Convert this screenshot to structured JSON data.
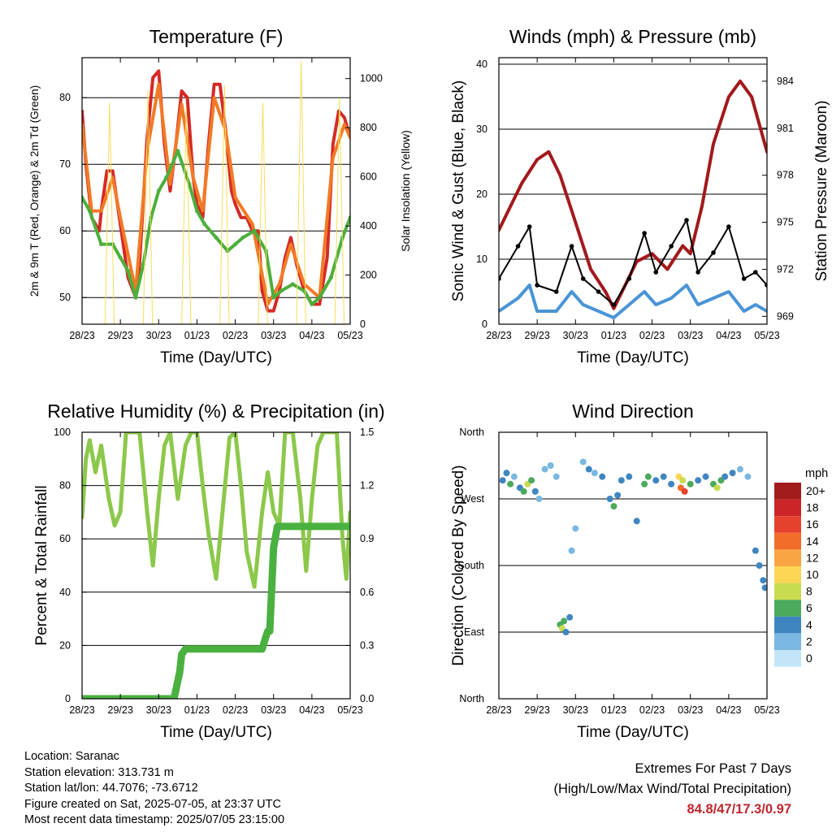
{
  "chart_data": [
    {
      "id": "temperature",
      "type": "line",
      "title": "Temperature (F)",
      "xlabel": "Time (Day/UTC)",
      "ylabel": "2m & 9m T (Red, Orange) & 2m Td (Green)",
      "y2label": "Solar Insolation (Yellow)",
      "ylim": [
        46,
        86
      ],
      "y2lim": [
        0,
        1085
      ],
      "x_ticks": [
        "28/23",
        "29/23",
        "30/23",
        "01/23",
        "02/23",
        "03/23",
        "04/23",
        "05/23"
      ],
      "y_ticks": [
        50,
        60,
        70,
        80
      ],
      "y2_ticks": [
        0,
        200,
        400,
        600,
        800,
        1000
      ],
      "grid": true,
      "series": [
        {
          "name": "2m T",
          "color": "#d42a25",
          "x": [
            0,
            0.1,
            0.25,
            0.45,
            0.5,
            0.65,
            0.8,
            1.0,
            1.2,
            1.4,
            1.5,
            1.7,
            1.85,
            2.0,
            2.15,
            2.3,
            2.45,
            2.6,
            2.75,
            2.9,
            3.0,
            3.15,
            3.3,
            3.45,
            3.6,
            3.75,
            3.9,
            4.0,
            4.15,
            4.3,
            4.45,
            4.6,
            4.7,
            4.85,
            5.0,
            5.15,
            5.3,
            5.45,
            5.6,
            5.8,
            6.0,
            6.2,
            6.4,
            6.55,
            6.7,
            6.85,
            7.0
          ],
          "y": [
            78,
            70,
            62,
            60,
            63,
            69,
            69,
            61,
            53,
            50,
            55,
            74,
            83,
            84,
            73,
            66,
            73,
            81,
            80,
            68,
            64,
            62,
            73,
            82,
            82,
            75,
            66,
            64,
            62,
            62,
            60,
            60,
            51,
            48,
            48,
            51,
            56,
            59,
            55,
            51,
            49,
            49,
            56,
            73,
            78,
            77,
            74
          ]
        },
        {
          "name": "9m T",
          "color": "#f27a26",
          "x": [
            0,
            0.25,
            0.5,
            0.8,
            1.0,
            1.4,
            1.7,
            2.0,
            2.3,
            2.6,
            2.9,
            3.15,
            3.45,
            3.75,
            4.0,
            4.45,
            4.85,
            5.15,
            5.45,
            5.8,
            6.2,
            6.55,
            6.85,
            7.0
          ],
          "y": [
            76,
            63,
            63,
            68,
            62,
            51,
            72,
            82,
            67,
            79,
            68,
            63,
            80,
            75,
            65,
            61,
            49,
            52,
            58,
            52,
            50,
            71,
            76,
            74
          ]
        },
        {
          "name": "2m Td",
          "color": "#4caf3b",
          "x": [
            0,
            0.2,
            0.5,
            0.8,
            1.0,
            1.2,
            1.4,
            1.6,
            1.8,
            2.0,
            2.2,
            2.5,
            2.8,
            3.0,
            3.2,
            3.5,
            3.8,
            4.0,
            4.2,
            4.5,
            4.8,
            5.0,
            5.2,
            5.5,
            5.8,
            6.0,
            6.2,
            6.5,
            6.8,
            7.0
          ],
          "y": [
            65,
            63,
            58,
            58,
            56,
            54,
            50,
            55,
            62,
            66,
            68,
            72,
            67,
            63,
            61,
            59,
            57,
            58,
            59,
            60,
            57,
            50,
            51,
            52,
            51,
            49,
            50,
            53,
            59,
            62
          ]
        },
        {
          "name": "Solar",
          "color": "#f7dc5a",
          "x": [
            0,
            0.6,
            0.72,
            0.84,
            1.0,
            1.6,
            1.72,
            1.84,
            2.0,
            2.6,
            2.72,
            2.84,
            3.0,
            3.6,
            3.72,
            3.84,
            4.0,
            4.6,
            4.72,
            4.84,
            5.0,
            5.6,
            5.72,
            5.84,
            6.0,
            6.6,
            6.72,
            6.84,
            7.0
          ],
          "y": [
            0,
            0,
            900,
            0,
            0,
            0,
            950,
            0,
            0,
            0,
            880,
            0,
            0,
            0,
            970,
            0,
            0,
            0,
            900,
            0,
            0,
            0,
            1070,
            0,
            0,
            0,
            920,
            0,
            0
          ]
        }
      ]
    },
    {
      "id": "winds",
      "type": "line",
      "title": "Winds (mph) & Pressure (mb)",
      "xlabel": "Time (Day/UTC)",
      "ylabel": "Sonic Wind & Gust (Blue, Black)",
      "y2label": "Station Pressure (Maroon)",
      "ylim": [
        0,
        41
      ],
      "y2lim": [
        968.5,
        985.5
      ],
      "x_ticks": [
        "28/23",
        "29/23",
        "30/23",
        "01/23",
        "02/23",
        "03/23",
        "04/23",
        "05/23"
      ],
      "y_ticks": [
        0,
        10,
        20,
        30,
        40
      ],
      "y2_ticks": [
        969,
        972,
        975,
        978,
        981,
        984
      ],
      "grid": true,
      "series": [
        {
          "name": "Pressure",
          "color": "#a3191c",
          "x": [
            0,
            0.3,
            0.6,
            1.0,
            1.3,
            1.6,
            2.0,
            2.4,
            2.8,
            3.0,
            3.3,
            3.6,
            4.0,
            4.4,
            4.8,
            5.0,
            5.3,
            5.6,
            6.0,
            6.3,
            6.6,
            7.0
          ],
          "y": [
            974.5,
            976,
            977.5,
            979,
            979.5,
            978,
            975,
            972,
            970.5,
            969.5,
            971,
            972.5,
            973,
            972,
            973.5,
            973,
            976,
            980,
            983,
            984,
            983,
            979.5
          ]
        },
        {
          "name": "Gust",
          "color": "#000000",
          "x": [
            0,
            0.5,
            0.8,
            1.0,
            1.5,
            1.9,
            2.2,
            2.6,
            3.0,
            3.4,
            3.8,
            4.1,
            4.5,
            4.9,
            5.2,
            5.6,
            6.0,
            6.4,
            6.7,
            7.0
          ],
          "y": [
            7,
            12,
            15,
            6,
            5,
            12,
            7,
            5,
            3,
            7,
            14,
            8,
            12,
            16,
            8,
            11,
            15,
            7,
            8,
            6
          ]
        },
        {
          "name": "Wind",
          "color": "#4a94d6",
          "x": [
            0,
            0.5,
            0.8,
            1.0,
            1.5,
            1.9,
            2.2,
            2.6,
            3.0,
            3.4,
            3.8,
            4.1,
            4.5,
            4.9,
            5.2,
            5.6,
            6.0,
            6.4,
            6.7,
            7.0
          ],
          "y": [
            2,
            4,
            6,
            2,
            2,
            5,
            3,
            2,
            1,
            3,
            5,
            3,
            4,
            6,
            3,
            4,
            5,
            2,
            3,
            2
          ]
        }
      ]
    },
    {
      "id": "humidity",
      "type": "line",
      "title": "Relative Humidity (%) & Precipitation (in)",
      "xlabel": "Time (Day/UTC)",
      "ylabel": "Percent & Total Rainfall",
      "ylim": [
        0,
        100
      ],
      "y2lim": [
        0,
        1.5
      ],
      "x_ticks": [
        "28/23",
        "29/23",
        "30/23",
        "01/23",
        "02/23",
        "03/23",
        "04/23",
        "05/23"
      ],
      "y_ticks": [
        0,
        20,
        40,
        60,
        80,
        100
      ],
      "y2_ticks": [
        "0.0",
        "0.3",
        "0.6",
        "0.9",
        "1.2",
        "1.5"
      ],
      "grid": true,
      "series": [
        {
          "name": "RH",
          "color": "#8cc84b",
          "x": [
            0,
            0.1,
            0.2,
            0.35,
            0.5,
            0.7,
            0.85,
            1.0,
            1.15,
            1.3,
            1.5,
            1.7,
            1.85,
            2.0,
            2.15,
            2.3,
            2.5,
            2.7,
            2.85,
            3.0,
            3.15,
            3.3,
            3.5,
            3.7,
            3.85,
            4.0,
            4.15,
            4.3,
            4.5,
            4.7,
            4.85,
            5.0,
            5.15,
            5.3,
            5.5,
            5.7,
            5.85,
            6.0,
            6.15,
            6.3,
            6.5,
            6.65,
            6.8,
            6.9,
            7.0
          ],
          "y": [
            68,
            90,
            97,
            85,
            95,
            75,
            65,
            70,
            100,
            100,
            100,
            70,
            50,
            75,
            95,
            100,
            75,
            95,
            100,
            100,
            80,
            62,
            45,
            75,
            98,
            100,
            80,
            55,
            42,
            70,
            85,
            70,
            65,
            100,
            100,
            75,
            48,
            75,
            95,
            100,
            100,
            100,
            60,
            45,
            70
          ]
        },
        {
          "name": "Rain",
          "color": "#4ab140",
          "x": [
            0,
            1.0,
            2.0,
            2.4,
            2.45,
            2.55,
            2.6,
            2.7,
            3.0,
            4.0,
            4.7,
            4.8,
            4.85,
            4.9,
            5.0,
            5.1,
            6.0,
            7.0
          ],
          "y": [
            0,
            0,
            0,
            0,
            0.05,
            0.15,
            0.25,
            0.28,
            0.28,
            0.28,
            0.28,
            0.35,
            0.38,
            0.38,
            0.85,
            0.97,
            0.97,
            0.97
          ]
        }
      ]
    },
    {
      "id": "direction",
      "type": "scatter",
      "title": "Wind Direction",
      "xlabel": "Time (Day/UTC)",
      "ylabel": "Direction (Colored By Speed)",
      "ylim": [
        0,
        360
      ],
      "x_ticks": [
        "28/23",
        "29/23",
        "30/23",
        "01/23",
        "02/23",
        "03/23",
        "04/23",
        "05/23"
      ],
      "y_ticks": [
        "North",
        "East",
        "South",
        "West",
        "North"
      ],
      "grid": true,
      "legend": {
        "unit": "mph",
        "labels": [
          "20+",
          "18",
          "16",
          "14",
          "12",
          "10",
          "8",
          "6",
          "4",
          "2",
          "0"
        ],
        "colors": [
          "#a31b1d",
          "#cc2527",
          "#e5422d",
          "#f26c2a",
          "#f9a544",
          "#fbd553",
          "#c9db4e",
          "#4caa5d",
          "#3f86c1",
          "#7ab8e2",
          "#c3e5f7"
        ]
      },
      "points": [
        {
          "x": 0.1,
          "y": 295,
          "s": 3
        },
        {
          "x": 0.2,
          "y": 305,
          "s": 4
        },
        {
          "x": 0.3,
          "y": 290,
          "s": 5
        },
        {
          "x": 0.4,
          "y": 300,
          "s": 2
        },
        {
          "x": 0.55,
          "y": 285,
          "s": 4
        },
        {
          "x": 0.65,
          "y": 280,
          "s": 6
        },
        {
          "x": 0.75,
          "y": 290,
          "s": 7
        },
        {
          "x": 0.85,
          "y": 295,
          "s": 5
        },
        {
          "x": 0.95,
          "y": 280,
          "s": 3
        },
        {
          "x": 1.05,
          "y": 270,
          "s": 2
        },
        {
          "x": 1.2,
          "y": 310,
          "s": 2
        },
        {
          "x": 1.35,
          "y": 315,
          "s": 1
        },
        {
          "x": 1.5,
          "y": 300,
          "s": 2
        },
        {
          "x": 1.6,
          "y": 100,
          "s": 6
        },
        {
          "x": 1.65,
          "y": 95,
          "s": 7
        },
        {
          "x": 1.7,
          "y": 105,
          "s": 5
        },
        {
          "x": 1.75,
          "y": 90,
          "s": 4
        },
        {
          "x": 1.85,
          "y": 110,
          "s": 3
        },
        {
          "x": 1.9,
          "y": 200,
          "s": 2
        },
        {
          "x": 2.0,
          "y": 230,
          "s": 1
        },
        {
          "x": 2.2,
          "y": 320,
          "s": 2
        },
        {
          "x": 2.35,
          "y": 310,
          "s": 3
        },
        {
          "x": 2.5,
          "y": 305,
          "s": 2
        },
        {
          "x": 2.7,
          "y": 300,
          "s": 3
        },
        {
          "x": 2.9,
          "y": 270,
          "s": 4
        },
        {
          "x": 3.0,
          "y": 260,
          "s": 5
        },
        {
          "x": 3.1,
          "y": 275,
          "s": 3
        },
        {
          "x": 3.2,
          "y": 295,
          "s": 3
        },
        {
          "x": 3.4,
          "y": 300,
          "s": 4
        },
        {
          "x": 3.6,
          "y": 240,
          "s": 3
        },
        {
          "x": 3.8,
          "y": 290,
          "s": 6
        },
        {
          "x": 3.9,
          "y": 300,
          "s": 5
        },
        {
          "x": 4.1,
          "y": 295,
          "s": 3
        },
        {
          "x": 4.3,
          "y": 300,
          "s": 4
        },
        {
          "x": 4.5,
          "y": 290,
          "s": 3
        },
        {
          "x": 4.7,
          "y": 300,
          "s": 10
        },
        {
          "x": 4.75,
          "y": 285,
          "s": 14
        },
        {
          "x": 4.8,
          "y": 295,
          "s": 8
        },
        {
          "x": 4.85,
          "y": 280,
          "s": 16
        },
        {
          "x": 5.0,
          "y": 290,
          "s": 5
        },
        {
          "x": 5.2,
          "y": 295,
          "s": 3
        },
        {
          "x": 5.4,
          "y": 300,
          "s": 4
        },
        {
          "x": 5.6,
          "y": 290,
          "s": 5
        },
        {
          "x": 5.7,
          "y": 285,
          "s": 7
        },
        {
          "x": 5.8,
          "y": 295,
          "s": 6
        },
        {
          "x": 5.9,
          "y": 300,
          "s": 4
        },
        {
          "x": 6.1,
          "y": 305,
          "s": 3
        },
        {
          "x": 6.3,
          "y": 310,
          "s": 2
        },
        {
          "x": 6.5,
          "y": 300,
          "s": 2
        },
        {
          "x": 6.7,
          "y": 200,
          "s": 3
        },
        {
          "x": 6.8,
          "y": 180,
          "s": 4
        },
        {
          "x": 6.9,
          "y": 160,
          "s": 4
        },
        {
          "x": 6.95,
          "y": 150,
          "s": 3
        }
      ]
    }
  ],
  "info": {
    "location": "Location: Saranac",
    "elevation": "Station elevation: 313.731 m",
    "latlon": "Station lat/lon: 44.7076; -73.6712",
    "created": "Figure created on Sat, 2025-07-05, at 23:37 UTC",
    "recent": "Most recent data timestamp: 2025/07/05 23:15:00"
  },
  "extremes": {
    "title": "Extremes For Past 7 Days",
    "subtitle": "(High/Low/Max Wind/Total Precipitation)",
    "values": "84.8/47/17.3/0.97"
  }
}
